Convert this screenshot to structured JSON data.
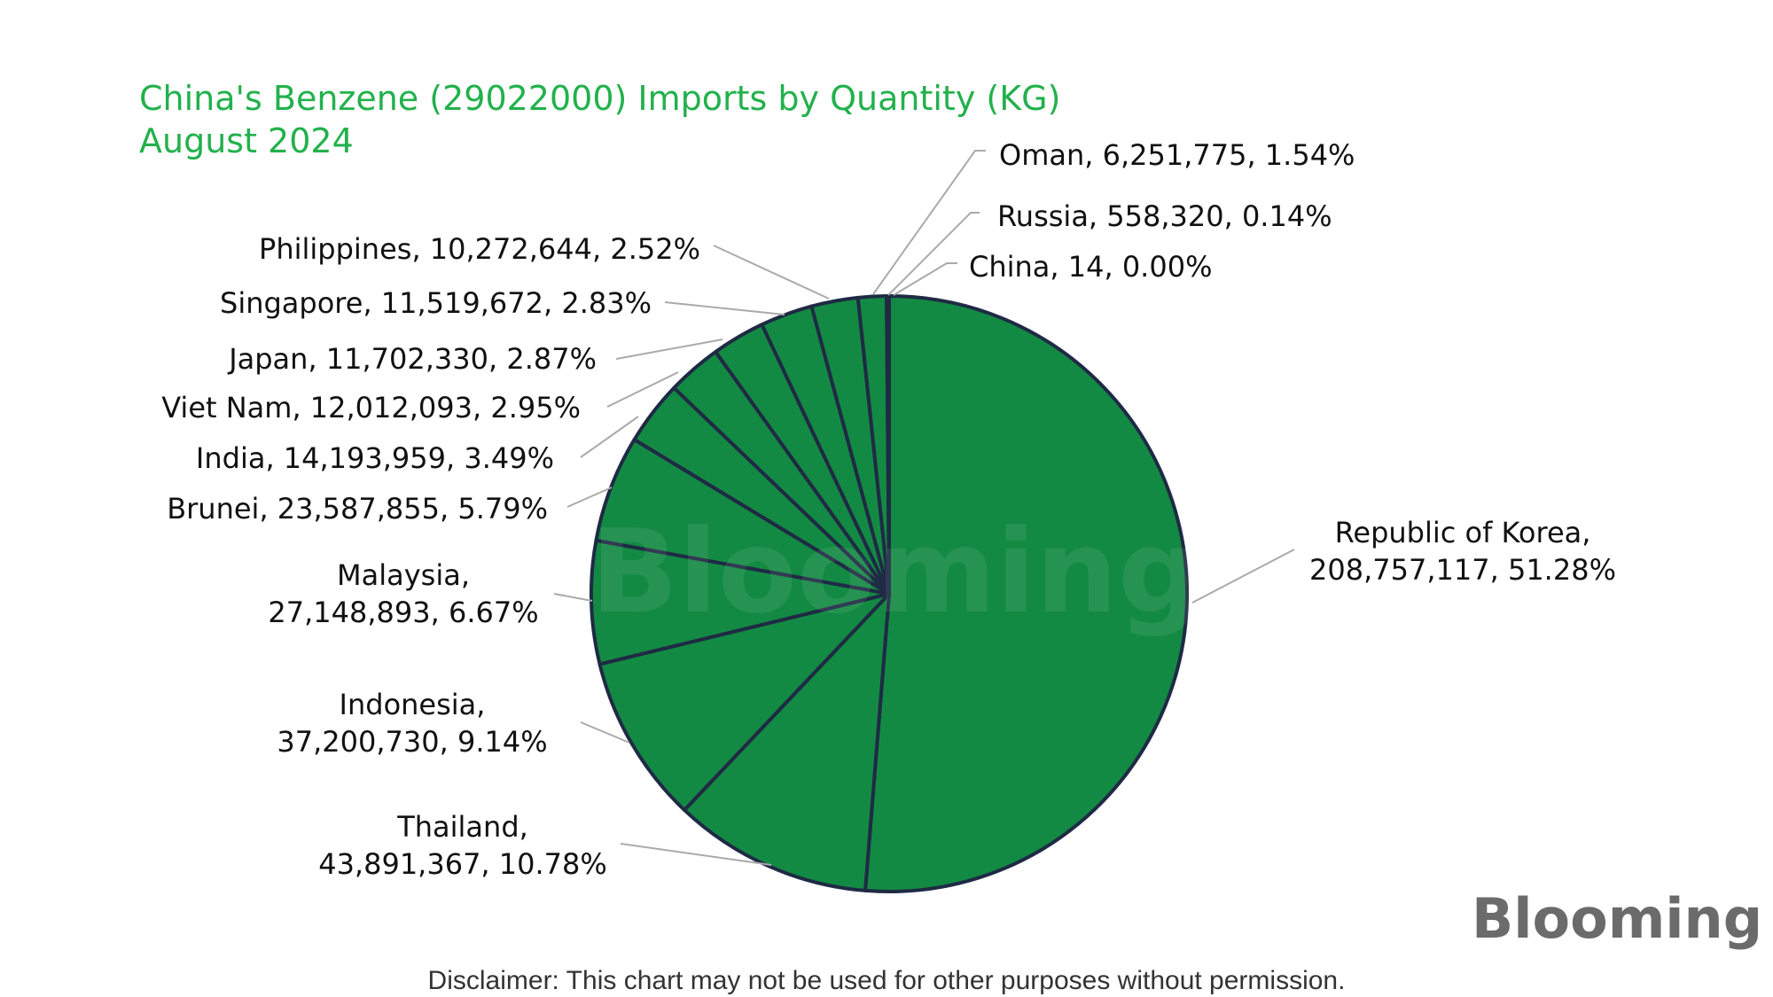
{
  "chart_data": {
    "type": "pie",
    "title": "China's Benzene (29022000) Imports by Quantity (KG)",
    "subtitle": "August 2024",
    "slices": [
      {
        "name": "Republic of Korea",
        "value": 208757117,
        "value_label": "208,757,117",
        "percent_label": "51.28%"
      },
      {
        "name": "Thailand",
        "value": 43891367,
        "value_label": "43,891,367",
        "percent_label": "10.78%"
      },
      {
        "name": "Indonesia",
        "value": 37200730,
        "value_label": "37,200,730",
        "percent_label": "9.14%"
      },
      {
        "name": "Malaysia",
        "value": 27148893,
        "value_label": "27,148,893",
        "percent_label": "6.67%"
      },
      {
        "name": "Brunei",
        "value": 23587855,
        "value_label": "23,587,855",
        "percent_label": "5.79%"
      },
      {
        "name": "India",
        "value": 14193959,
        "value_label": "14,193,959",
        "percent_label": "3.49%"
      },
      {
        "name": "Viet Nam",
        "value": 12012093,
        "value_label": "12,012,093",
        "percent_label": "2.95%"
      },
      {
        "name": "Japan",
        "value": 11702330,
        "value_label": "11,702,330",
        "percent_label": "2.87%"
      },
      {
        "name": "Singapore",
        "value": 11519672,
        "value_label": "11,519,672",
        "percent_label": "2.83%"
      },
      {
        "name": "Philippines",
        "value": 10272644,
        "value_label": "10,272,644",
        "percent_label": "2.52%"
      },
      {
        "name": "Oman",
        "value": 6251775,
        "value_label": "6,251,775",
        "percent_label": "1.54%"
      },
      {
        "name": "Russia",
        "value": 558320,
        "value_label": "558,320",
        "percent_label": "0.14%"
      },
      {
        "name": "China",
        "value": 14,
        "value_label": "14",
        "percent_label": "0.00%"
      }
    ],
    "colors": {
      "slice_fill": "#138a43",
      "slice_edge": "#1f2a44",
      "leader_line": "#aaaaaa",
      "title": "#22b14c"
    }
  },
  "watermark": "Blooming",
  "logo": {
    "text": "Blooming"
  },
  "disclaimer": "Disclaimer: This chart may not be used for other purposes without permission."
}
